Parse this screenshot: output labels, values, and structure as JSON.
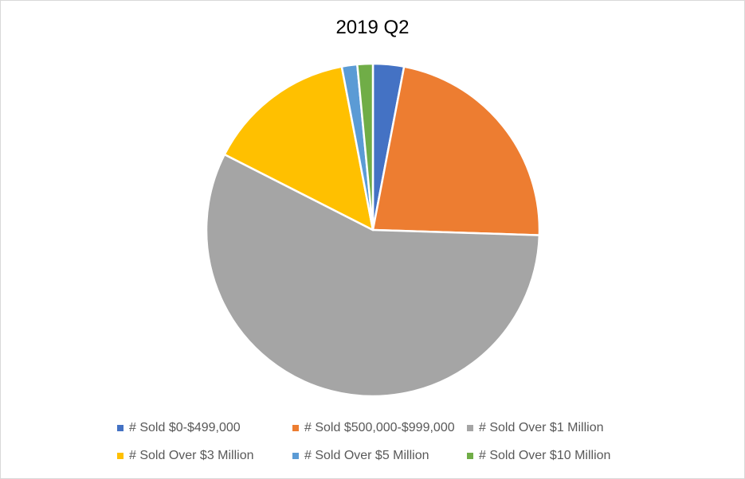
{
  "chart_data": {
    "type": "pie",
    "title": "2019 Q2",
    "categories": [
      "# Sold $0-$499,000",
      "# Sold $500,000-$999,000",
      "# Sold Over $1 Million",
      "# Sold Over $3 Million",
      "# Sold Over $5 Million",
      "# Sold Over $10 Million"
    ],
    "values": [
      3,
      22.5,
      57,
      14.5,
      1.5,
      1.5
    ],
    "colors": [
      "#4472C4",
      "#ED7D31",
      "#A5A5A5",
      "#FFC000",
      "#5B9BD5",
      "#70AD47"
    ],
    "start_angle_deg": 0,
    "direction": "clockwise",
    "legend_position": "bottom"
  }
}
